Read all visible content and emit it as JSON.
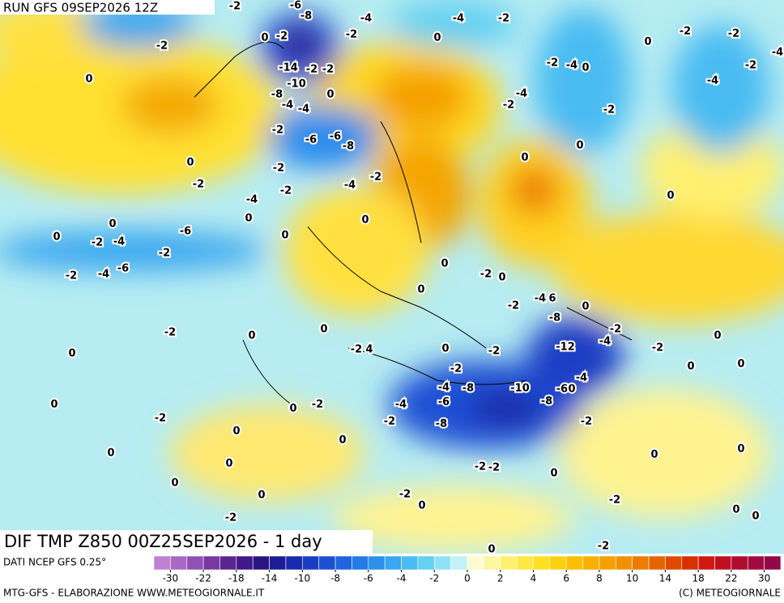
{
  "header": {
    "run": "RUN GFS 09SEP2026 12Z"
  },
  "title": "DIF TMP Z850 00Z25SEP2026 - 1 day",
  "source": "DATI NCEP GFS 0.25°",
  "credit_left": "MTG-GFS - ELABORAZIONE WWW.METEOGIORNALE.IT",
  "credit_right": "(C) METEOGIORNALE",
  "colorbar": {
    "colors": [
      "#c080d0",
      "#a868c4",
      "#9050b4",
      "#7838a0",
      "#5c2490",
      "#401888",
      "#2a1680",
      "#1c1c94",
      "#1a2aac",
      "#1a3cc4",
      "#1c50d4",
      "#2064de",
      "#247ae6",
      "#2c90ec",
      "#38a6f0",
      "#4abcf2",
      "#64d0f2",
      "#8ee2f4",
      "#c0f2f8",
      "#fffbd0",
      "#fff6a0",
      "#fff070",
      "#ffe840",
      "#ffe020",
      "#fdd010",
      "#fcc000",
      "#f8b000",
      "#f5a000",
      "#f09000",
      "#eb7c00",
      "#e56400",
      "#e04a00",
      "#d83000",
      "#d01a10",
      "#c01020",
      "#b00c30",
      "#a00a40",
      "#900848"
    ],
    "ticks": [
      -30,
      -22,
      -18,
      -14,
      -10,
      -8,
      -6,
      -4,
      -2,
      0,
      2,
      4,
      6,
      8,
      10,
      14,
      18,
      22,
      30
    ]
  },
  "map_labels": [
    0,
    -2,
    0,
    -2,
    -8,
    -6,
    -2,
    -4,
    -2,
    0,
    -4,
    -2,
    0,
    -2,
    -2,
    -4,
    -2,
    -4,
    -2,
    -4,
    0,
    -4,
    -2,
    -2,
    0,
    0,
    0,
    -14,
    -2,
    -2,
    -10,
    -8,
    -4,
    -4,
    -2,
    -6,
    -6,
    -8,
    0,
    0,
    -2,
    -2,
    -2,
    -4,
    -2,
    -4,
    0,
    0,
    0,
    -2,
    -4,
    -6,
    -2,
    -2,
    -4,
    -6,
    0,
    0,
    0,
    -2,
    0,
    0,
    -2,
    -4,
    6,
    0,
    -8,
    -2,
    -4,
    -12,
    -2,
    0,
    0,
    0,
    -4,
    -2,
    0,
    -2,
    -2,
    0,
    0,
    0,
    -2,
    4,
    -4,
    -8,
    -10,
    -6,
    0,
    -8,
    -4,
    -6,
    -8,
    -2,
    0,
    -2,
    0,
    -2,
    0,
    -2,
    0,
    0,
    0,
    -2,
    -2,
    0,
    0,
    0,
    0,
    0,
    0,
    -2,
    -2,
    -2,
    0,
    0,
    -2,
    0
  ]
}
